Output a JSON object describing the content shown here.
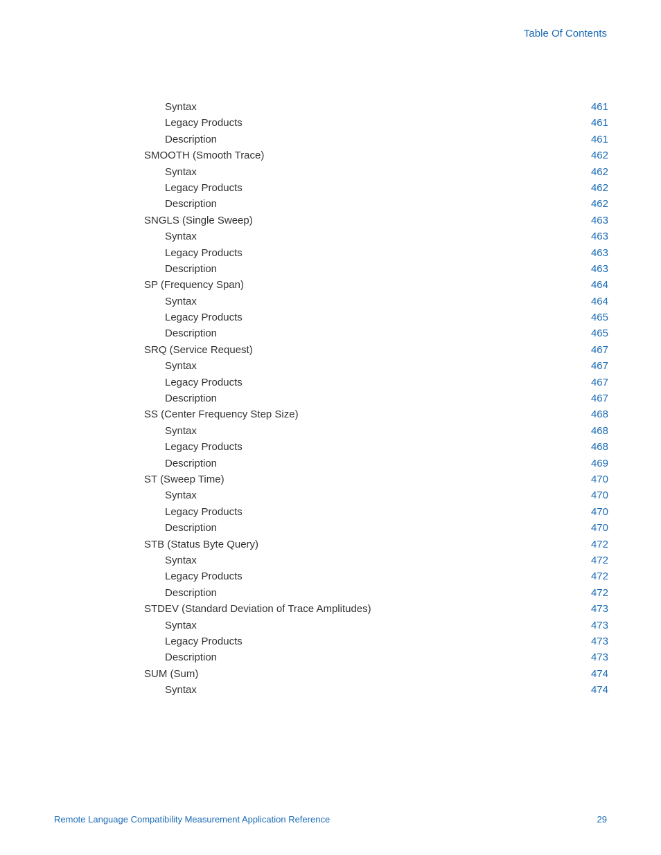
{
  "header": {
    "title": "Table Of Contents"
  },
  "footer": {
    "doc_title": "Remote Language Compatibility Measurement Application Reference",
    "page_number": "29"
  },
  "colors": {
    "link": "#1a6bb5",
    "text": "#333333",
    "background": "#ffffff"
  },
  "toc": {
    "entries": [
      {
        "label": "Syntax",
        "page": "461",
        "indent": 2
      },
      {
        "label": "Legacy Products",
        "page": "461",
        "indent": 2
      },
      {
        "label": "Description",
        "page": "461",
        "indent": 2
      },
      {
        "label": "SMOOTH (Smooth Trace)",
        "page": "462",
        "indent": 1
      },
      {
        "label": "Syntax",
        "page": "462",
        "indent": 2
      },
      {
        "label": "Legacy Products",
        "page": "462",
        "indent": 2
      },
      {
        "label": "Description",
        "page": "462",
        "indent": 2
      },
      {
        "label": "SNGLS (Single Sweep)",
        "page": "463",
        "indent": 1
      },
      {
        "label": "Syntax",
        "page": "463",
        "indent": 2
      },
      {
        "label": "Legacy Products",
        "page": "463",
        "indent": 2
      },
      {
        "label": "Description",
        "page": "463",
        "indent": 2
      },
      {
        "label": "SP (Frequency Span)",
        "page": "464",
        "indent": 1
      },
      {
        "label": "Syntax",
        "page": "464",
        "indent": 2
      },
      {
        "label": "Legacy Products",
        "page": "465",
        "indent": 2
      },
      {
        "label": "Description",
        "page": "465",
        "indent": 2
      },
      {
        "label": "SRQ (Service Request)",
        "page": "467",
        "indent": 1
      },
      {
        "label": "Syntax",
        "page": "467",
        "indent": 2
      },
      {
        "label": "Legacy Products",
        "page": "467",
        "indent": 2
      },
      {
        "label": "Description",
        "page": "467",
        "indent": 2
      },
      {
        "label": "SS (Center Frequency Step Size)",
        "page": "468",
        "indent": 1
      },
      {
        "label": "Syntax",
        "page": "468",
        "indent": 2
      },
      {
        "label": "Legacy Products",
        "page": "468",
        "indent": 2
      },
      {
        "label": "Description",
        "page": "469",
        "indent": 2
      },
      {
        "label": "ST (Sweep Time)",
        "page": "470",
        "indent": 1
      },
      {
        "label": "Syntax",
        "page": "470",
        "indent": 2
      },
      {
        "label": "Legacy Products",
        "page": "470",
        "indent": 2
      },
      {
        "label": "Description",
        "page": "470",
        "indent": 2
      },
      {
        "label": "STB (Status Byte Query)",
        "page": "472",
        "indent": 1
      },
      {
        "label": "Syntax",
        "page": "472",
        "indent": 2
      },
      {
        "label": "Legacy Products",
        "page": "472",
        "indent": 2
      },
      {
        "label": "Description",
        "page": "472",
        "indent": 2
      },
      {
        "label": "STDEV (Standard Deviation of Trace Amplitudes)",
        "page": "473",
        "indent": 1
      },
      {
        "label": "Syntax",
        "page": "473",
        "indent": 2
      },
      {
        "label": "Legacy Products",
        "page": "473",
        "indent": 2
      },
      {
        "label": "Description",
        "page": "473",
        "indent": 2
      },
      {
        "label": "SUM (Sum)",
        "page": "474",
        "indent": 1
      },
      {
        "label": "Syntax",
        "page": "474",
        "indent": 2
      }
    ]
  }
}
